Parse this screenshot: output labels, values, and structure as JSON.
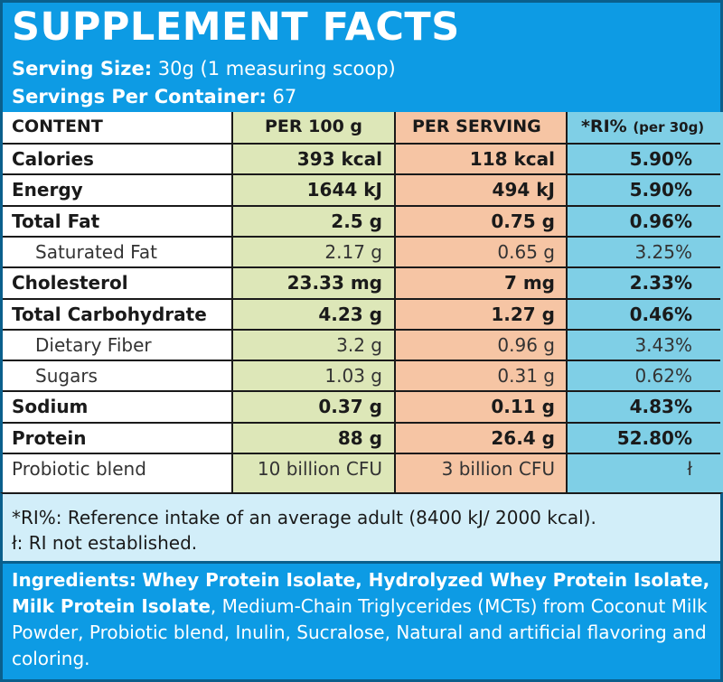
{
  "header": {
    "title": "SUPPLEMENT FACTS",
    "serving_size_label": "Serving Size:",
    "serving_size_value": "30g (1 measuring scoop)",
    "servings_label": "Servings Per Container:",
    "servings_value": "67"
  },
  "table": {
    "columns": {
      "content": "CONTENT",
      "per100": "PER 100 g",
      "perserving": "PER SERVING",
      "ri": "*RI%",
      "ri_note": "(per 30g)"
    },
    "rows": [
      {
        "name": "Calories",
        "per100": "393 kcal",
        "serving": "118 kcal",
        "ri": "5.90%",
        "style": "bold"
      },
      {
        "name": "Energy",
        "per100": "1644 kJ",
        "serving": "494 kJ",
        "ri": "5.90%",
        "style": "bold"
      },
      {
        "name": "Total Fat",
        "per100": "2.5 g",
        "serving": "0.75 g",
        "ri": "0.96%",
        "style": "bold"
      },
      {
        "name": "Saturated Fat",
        "per100": "2.17 g",
        "serving": "0.65 g",
        "ri": "3.25%",
        "style": "sub"
      },
      {
        "name": "Cholesterol",
        "per100": "23.33 mg",
        "serving": "7 mg",
        "ri": "2.33%",
        "style": "bold"
      },
      {
        "name": "Total Carbohydrate",
        "per100": "4.23 g",
        "serving": "1.27 g",
        "ri": "0.46%",
        "style": "bold"
      },
      {
        "name": "Dietary Fiber",
        "per100": "3.2 g",
        "serving": "0.96 g",
        "ri": "3.43%",
        "style": "sub"
      },
      {
        "name": "Sugars",
        "per100": "1.03 g",
        "serving": "0.31 g",
        "ri": "0.62%",
        "style": "sub"
      },
      {
        "name": "Sodium",
        "per100": "0.37 g",
        "serving": "0.11 g",
        "ri": "4.83%",
        "style": "bold"
      },
      {
        "name": "Protein",
        "per100": "88 g",
        "serving": "26.4 g",
        "ri": "52.80%",
        "style": "bold"
      },
      {
        "name": "Probiotic blend",
        "per100": "10 billion CFU",
        "serving": "3 billion CFU",
        "ri": "ł",
        "style": "plain"
      }
    ]
  },
  "footnotes": {
    "ri_note": "*RI%: Reference intake of an average adult (8400 kJ/ 2000 kcal).",
    "not_established": "ł: RI not established."
  },
  "ingredients": {
    "label": "Ingredients:",
    "bold_part": "Whey Protein Isolate, Hydrolyzed Whey Protein Isolate, Milk Protein Isolate",
    "rest": ", Medium-Chain Triglycerides (MCTs) from Coconut Milk Powder, Probiotic blend, Inulin, Sucralose, Natural and artificial flavoring and coloring."
  },
  "colors": {
    "brand_blue": "#0d9be4",
    "per100_bg": "#dde7b8",
    "serving_bg": "#f6c5a4",
    "ri_bg": "#7fcfe6",
    "footnote_bg": "#d2eef9"
  }
}
